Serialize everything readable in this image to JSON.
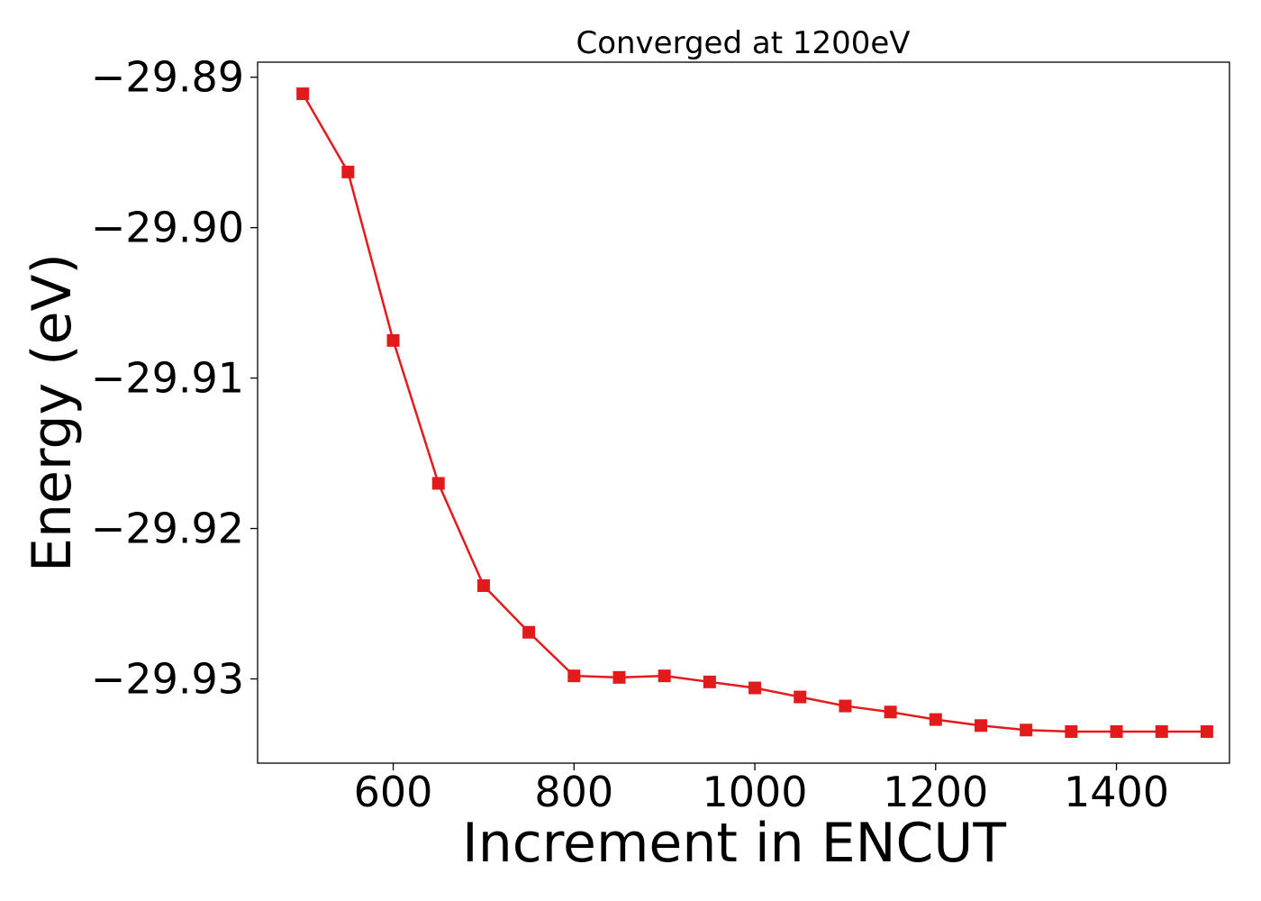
{
  "chart_data": {
    "type": "line",
    "title": "Converged at 1200eV",
    "xlabel": "Increment in ENCUT",
    "ylabel": "Energy (eV)",
    "xlim": [
      450,
      1525
    ],
    "ylim": [
      -29.9356,
      -29.889
    ],
    "x_ticks": [
      600,
      800,
      1000,
      1200,
      1400
    ],
    "x_tick_labels": [
      "600",
      "800",
      "1000",
      "1200",
      "1400"
    ],
    "y_ticks": [
      -29.89,
      -29.9,
      -29.91,
      -29.92,
      -29.93
    ],
    "y_tick_labels": [
      "−29.89",
      "−29.90",
      "−29.91",
      "−29.92",
      "−29.93"
    ],
    "grid": false,
    "color": "#e31a1c",
    "marker": "square",
    "series": [
      {
        "x": [
          500,
          550,
          600,
          650,
          700,
          750,
          800,
          850,
          900,
          950,
          1000,
          1050,
          1100,
          1150,
          1200,
          1250,
          1300,
          1350,
          1400,
          1450,
          1500
        ],
        "y": [
          -29.8911,
          -29.8963,
          -29.9075,
          -29.917,
          -29.9238,
          -29.9269,
          -29.9298,
          -29.9299,
          -29.9298,
          -29.9302,
          -29.9306,
          -29.9312,
          -29.9318,
          -29.9322,
          -29.9327,
          -29.9331,
          -29.9334,
          -29.9335,
          -29.9335,
          -29.9335,
          -29.9335
        ]
      }
    ]
  }
}
